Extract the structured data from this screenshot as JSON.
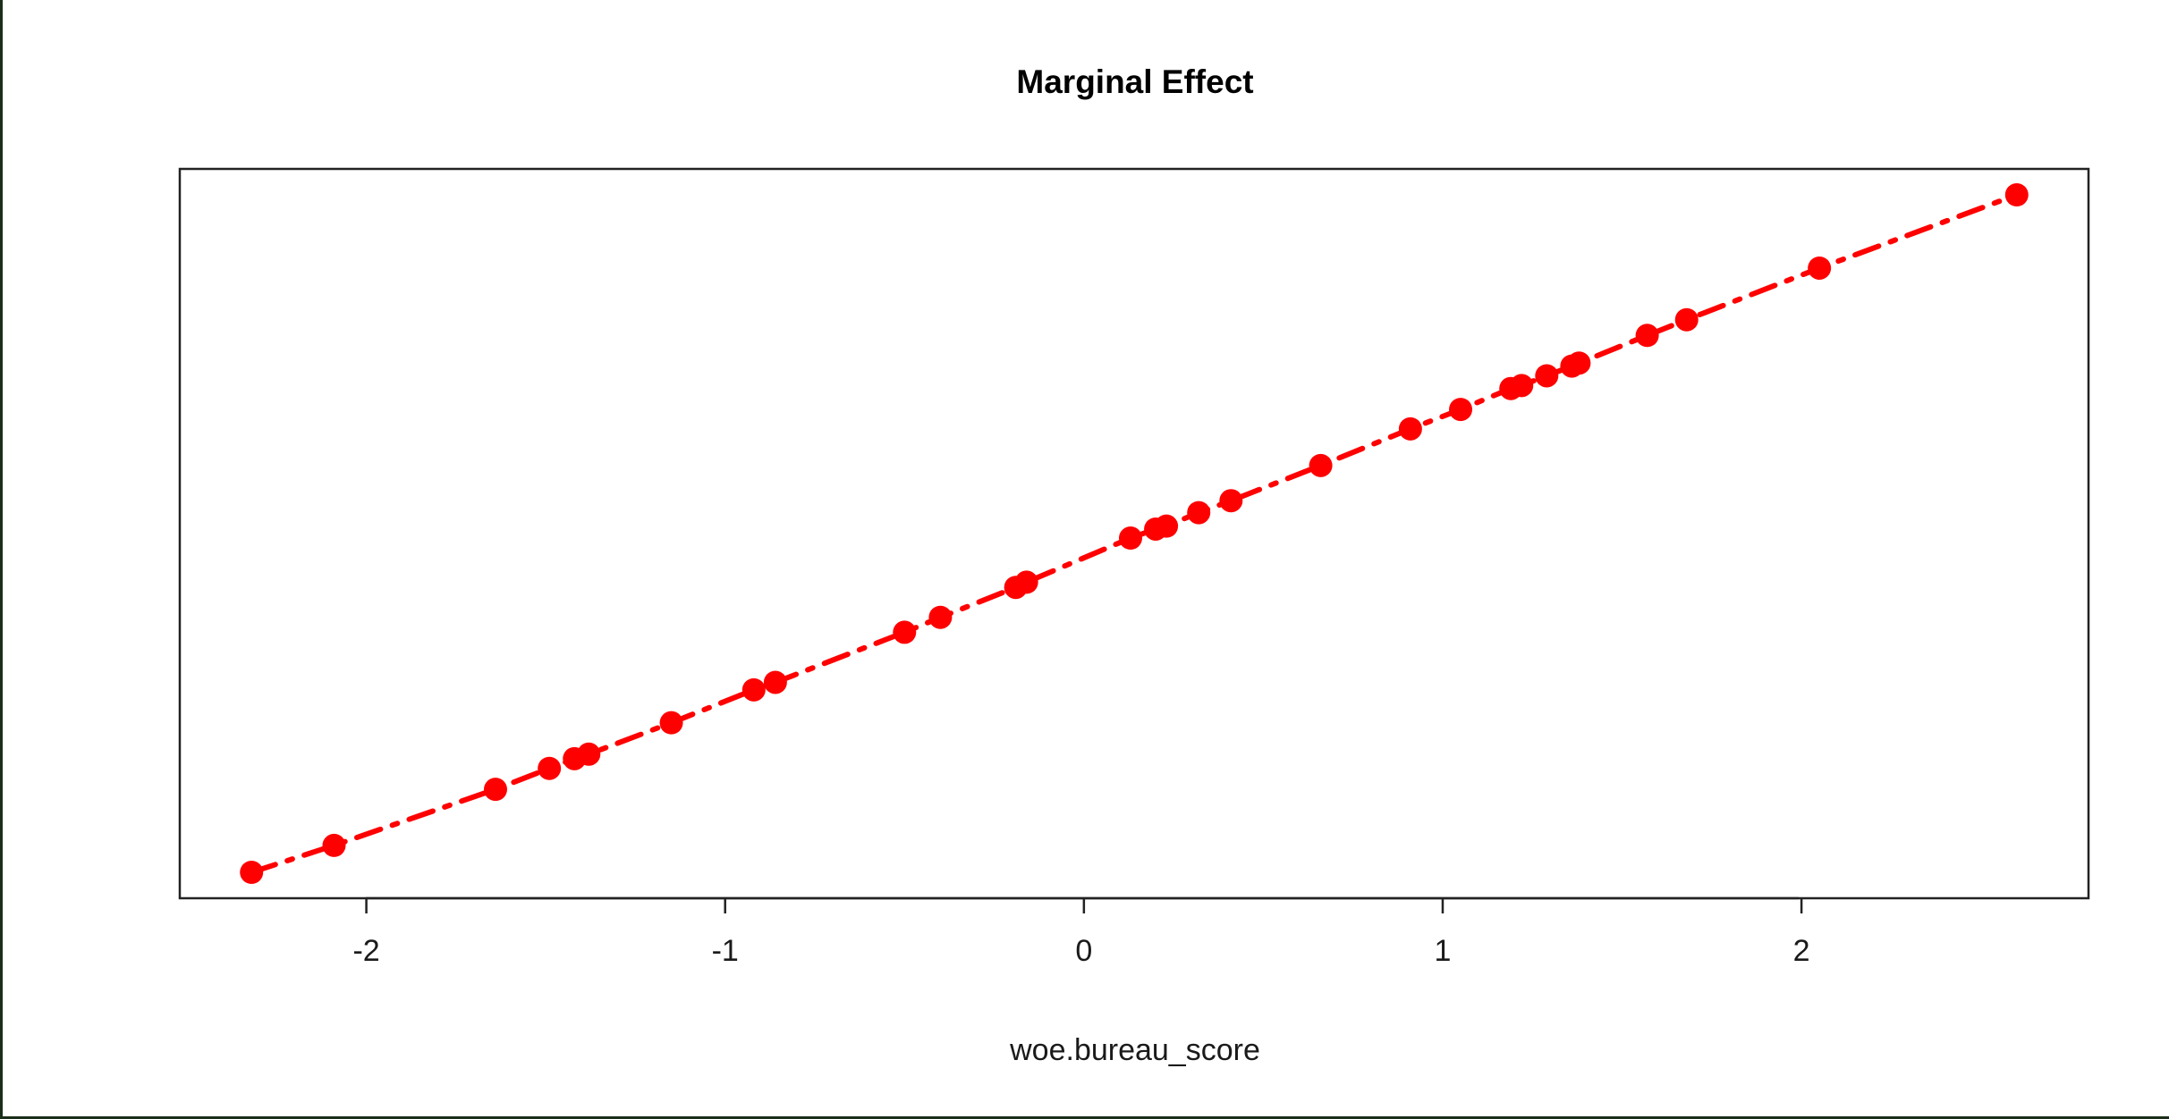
{
  "chart_data": {
    "type": "line",
    "title": "Marginal Effect",
    "xlabel": "woe.bureau_score",
    "ylabel": "",
    "xlim": [
      -2.52,
      2.8
    ],
    "ylim": [
      0,
      1
    ],
    "x_ticks": [
      -2,
      -1,
      0,
      1,
      2
    ],
    "x_tick_labels": [
      "-2",
      "-1",
      "0",
      "1",
      "2"
    ],
    "y_axis_shown": false,
    "grid": false,
    "legend": "none",
    "line_style": "dash-dot",
    "color": "#ff0000",
    "series": [
      {
        "x": [
          -2.32,
          -2.09,
          -1.64,
          -1.49,
          -1.42,
          -1.38,
          -1.15,
          -0.92,
          -0.86,
          -0.5,
          -0.4,
          -0.19,
          -0.16,
          0.13,
          0.2,
          0.23,
          0.32,
          0.41,
          0.66,
          0.91,
          1.05,
          1.19,
          1.22,
          1.29,
          1.36,
          1.38,
          1.57,
          1.68,
          2.05,
          2.6
        ],
        "y": [
          0.0,
          0.036,
          0.111,
          0.139,
          0.152,
          0.158,
          0.2,
          0.244,
          0.254,
          0.321,
          0.341,
          0.381,
          0.388,
          0.447,
          0.459,
          0.463,
          0.481,
          0.497,
          0.544,
          0.593,
          0.619,
          0.647,
          0.651,
          0.664,
          0.677,
          0.681,
          0.718,
          0.739,
          0.808,
          0.906
        ]
      }
    ]
  }
}
